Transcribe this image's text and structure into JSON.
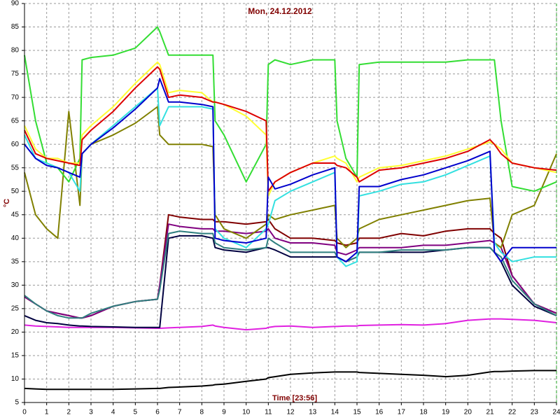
{
  "chart_data": {
    "type": "line",
    "title": "Mon, 24.12.2012",
    "x_label": "Time [23:56]",
    "y_label": "°C",
    "xlim": [
      0,
      24
    ],
    "ylim": [
      5,
      90
    ],
    "xticks": [
      0,
      1,
      2,
      3,
      4,
      5,
      6,
      7,
      8,
      9,
      10,
      11,
      12,
      13,
      14,
      15,
      16,
      17,
      18,
      19,
      20,
      21,
      22,
      23,
      24
    ],
    "yticks": [
      5,
      10,
      15,
      20,
      25,
      30,
      35,
      40,
      45,
      50,
      55,
      60,
      65,
      70,
      75,
      80,
      85,
      90
    ],
    "grid": true,
    "x": [
      0,
      0.5,
      1,
      1.5,
      2,
      2.5,
      2.6,
      3,
      4,
      5,
      6,
      6.1,
      6.5,
      7,
      8,
      8.5,
      8.6,
      9,
      10,
      10.9,
      11,
      11.3,
      12,
      13,
      14,
      14.1,
      14.5,
      15,
      15.1,
      16,
      17,
      18,
      19,
      20,
      21,
      21.2,
      21.5,
      22,
      23,
      24
    ],
    "series": [
      {
        "color": "#000000",
        "values": [
          8,
          7.9,
          7.8,
          7.8,
          7.8,
          7.8,
          7.8,
          7.8,
          7.8,
          7.9,
          8,
          8,
          8.2,
          8.3,
          8.5,
          8.7,
          8.8,
          8.9,
          9.5,
          10,
          10.3,
          10.5,
          11,
          11.3,
          11.5,
          11.5,
          11.5,
          11.5,
          11.4,
          11.2,
          11,
          10.8,
          10.5,
          10.8,
          11.5,
          11.6,
          11.6,
          11.7,
          11.8,
          11.8
        ]
      },
      {
        "color": "#e020e0",
        "values": [
          21.5,
          21.3,
          21.2,
          21.1,
          21,
          21,
          21,
          21,
          21,
          20.9,
          20.8,
          20.8,
          20.9,
          21,
          21.2,
          21.5,
          21.3,
          21,
          20.5,
          20.8,
          21,
          21.2,
          21.3,
          21,
          21.2,
          21.2,
          21.3,
          21.3,
          21.4,
          21.5,
          21.6,
          21.5,
          21.8,
          22.5,
          22.8,
          22.8,
          22.8,
          22.7,
          22.5,
          22
        ]
      },
      {
        "color": "#000040",
        "values": [
          23.5,
          22.5,
          22,
          21.8,
          21.5,
          21.3,
          21.3,
          21.2,
          21.1,
          21,
          21,
          21,
          40,
          40.5,
          40.5,
          40,
          38,
          37.5,
          37,
          38,
          38,
          37.5,
          36,
          36,
          36,
          36,
          35,
          36,
          37,
          37,
          37,
          37,
          37.5,
          38,
          38,
          37,
          35,
          30,
          25.5,
          23.5
        ]
      },
      {
        "color": "#800000",
        "values": [
          27.5,
          26,
          24.5,
          24,
          23.5,
          23,
          23,
          23.5,
          25.5,
          26.5,
          27,
          30,
          45,
          44.5,
          44,
          44,
          43.5,
          43.5,
          43,
          43.5,
          44,
          42,
          40,
          40,
          39.5,
          39,
          38.5,
          39,
          40,
          40,
          41,
          40.5,
          41.5,
          42,
          42,
          41,
          40,
          32,
          26,
          24
        ]
      },
      {
        "color": "#800080",
        "values": [
          27.5,
          26,
          24.5,
          24,
          23.5,
          23,
          23,
          23.5,
          25.5,
          26.5,
          27,
          30,
          43,
          42.5,
          42,
          42,
          41.5,
          41.5,
          41,
          41.5,
          42,
          40,
          39,
          39,
          38.5,
          37,
          36.5,
          37.5,
          38,
          38,
          38,
          38.5,
          38.5,
          39,
          39.5,
          39,
          38,
          32,
          26,
          24
        ]
      },
      {
        "color": "#2f7f7f",
        "values": [
          27.8,
          26,
          24.5,
          23.5,
          23,
          23,
          23,
          24,
          25.5,
          26.5,
          27,
          29,
          41,
          41.5,
          41,
          41,
          39,
          38,
          37.5,
          38,
          40,
          39,
          37,
          37,
          37,
          36,
          35,
          36,
          37,
          37,
          37.5,
          37.5,
          37.5,
          38,
          38,
          37,
          36,
          31,
          26,
          23.5
        ]
      },
      {
        "color": "#808000",
        "values": [
          54,
          45,
          42,
          40,
          67,
          47,
          58,
          60,
          62,
          64.5,
          68,
          62,
          60,
          60,
          60,
          59.5,
          45,
          42,
          40,
          43,
          45,
          44,
          45,
          46,
          47,
          40,
          38,
          40,
          42,
          44,
          45,
          46,
          47,
          48,
          48.5,
          39,
          38,
          45,
          47,
          58
        ]
      },
      {
        "color": "#33dd33",
        "values": [
          79,
          65,
          56,
          55,
          52,
          57,
          78,
          78.5,
          79,
          80.5,
          85,
          84,
          79,
          79,
          79,
          79,
          65,
          62,
          52,
          60,
          77,
          78,
          77,
          78,
          78,
          65,
          57,
          53,
          77,
          77.5,
          77.5,
          77.5,
          77.5,
          78,
          78,
          78,
          65,
          51,
          50,
          52
        ]
      },
      {
        "color": "#ffff33",
        "values": [
          64,
          59,
          57,
          57,
          56,
          56,
          62,
          64,
          68,
          73,
          77.5,
          77,
          71,
          71.5,
          71,
          69,
          69,
          68.5,
          66,
          62,
          49,
          52,
          54,
          56,
          57.5,
          57,
          56,
          52,
          53,
          55,
          55.5,
          56.5,
          57.5,
          59,
          60.5,
          60,
          59,
          56,
          55,
          54
        ]
      },
      {
        "color": "#33e0e0",
        "values": [
          62,
          57,
          56,
          55,
          54,
          50,
          58,
          60,
          64,
          68,
          72,
          64,
          68,
          68,
          68,
          67.5,
          42,
          40,
          38,
          42,
          43,
          48,
          50,
          52,
          54,
          36,
          34,
          35,
          49,
          50,
          51.5,
          52,
          53.5,
          55.5,
          57.5,
          39,
          37,
          35,
          36,
          36
        ]
      },
      {
        "color": "#dd0000",
        "values": [
          63,
          58,
          57,
          56.5,
          56,
          55.5,
          61,
          63,
          67,
          72,
          76.5,
          76,
          70,
          70.5,
          70,
          69,
          69,
          68.5,
          67,
          65,
          50,
          52,
          54,
          56,
          56,
          55.5,
          55,
          53,
          52,
          54.5,
          55,
          56,
          57,
          58.5,
          61,
          60,
          58,
          56,
          55,
          54.5
        ]
      },
      {
        "color": "#0000cc",
        "values": [
          60,
          57,
          55.5,
          55,
          54,
          53,
          58,
          60,
          63.5,
          67.5,
          72,
          74,
          69,
          69,
          68.5,
          68,
          40,
          39.5,
          39,
          40,
          53,
          50.5,
          51.5,
          53.5,
          55,
          36,
          35,
          37,
          51,
          51,
          52.5,
          53.5,
          55,
          56.5,
          58.5,
          37,
          35,
          38,
          38,
          38
        ]
      }
    ]
  }
}
